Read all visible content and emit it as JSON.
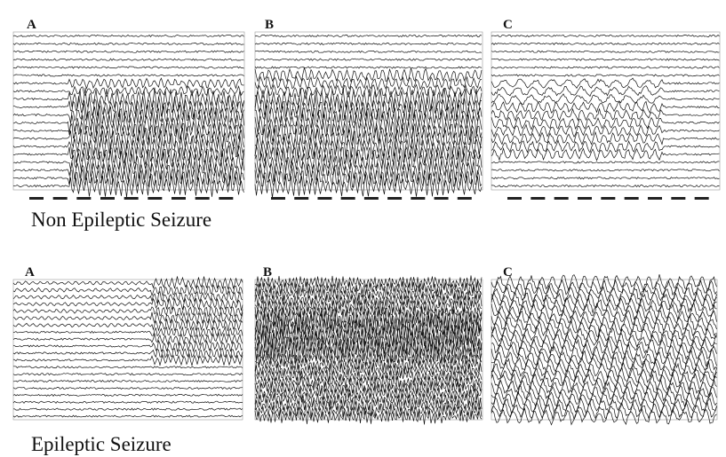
{
  "rows": [
    {
      "caption": "Non Epileptic Seizure",
      "panels": [
        {
          "label": "A"
        },
        {
          "label": "B"
        },
        {
          "label": "C"
        }
      ]
    },
    {
      "caption": "Epileptic Seizure",
      "panels": [
        {
          "label": "A"
        },
        {
          "label": "B"
        },
        {
          "label": "C"
        }
      ]
    }
  ]
}
